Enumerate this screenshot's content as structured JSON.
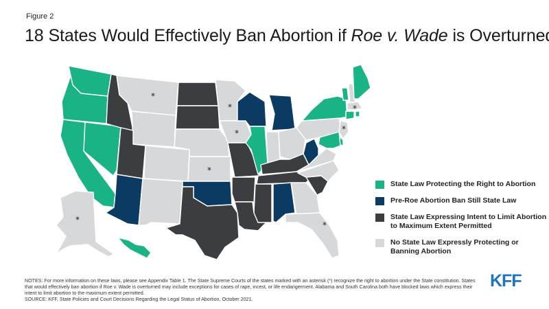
{
  "header": {
    "figure_label": "Figure 2",
    "title_before": "18 States Would Effectively Ban Abortion if ",
    "title_italic": "Roe v. Wade",
    "title_after": " is Overturned"
  },
  "colors": {
    "protecting": "#19b386",
    "pre_roe_ban": "#0b3a63",
    "intent_to_limit": "#3b3d40",
    "no_law": "#d7d8d9"
  },
  "legend": [
    {
      "label": "State Law Protecting the Right to Abortion",
      "category": "protecting"
    },
    {
      "label": "Pre-Roe Abortion Ban Still State Law",
      "category": "pre_roe_ban"
    },
    {
      "label": "State Law Expressing Intent to Limit Abortion to Maximum Extent Permitted",
      "category": "intent_to_limit"
    },
    {
      "label": "No State Law Expressly Protecting or Banning Abortion",
      "category": "no_law"
    }
  ],
  "map_data": {
    "states": [
      {
        "code": "WA",
        "category": "protecting"
      },
      {
        "code": "OR",
        "category": "protecting"
      },
      {
        "code": "CA",
        "category": "protecting"
      },
      {
        "code": "NV",
        "category": "protecting"
      },
      {
        "code": "ID",
        "category": "intent_to_limit"
      },
      {
        "code": "MT",
        "category": "no_law",
        "court_recognized": true
      },
      {
        "code": "WY",
        "category": "no_law"
      },
      {
        "code": "UT",
        "category": "intent_to_limit"
      },
      {
        "code": "AZ",
        "category": "pre_roe_ban"
      },
      {
        "code": "CO",
        "category": "no_law"
      },
      {
        "code": "NM",
        "category": "no_law"
      },
      {
        "code": "ND",
        "category": "intent_to_limit"
      },
      {
        "code": "SD",
        "category": "intent_to_limit"
      },
      {
        "code": "NE",
        "category": "no_law"
      },
      {
        "code": "KS",
        "category": "no_law",
        "court_recognized": true
      },
      {
        "code": "OK",
        "category": "pre_roe_ban"
      },
      {
        "code": "TX",
        "category": "intent_to_limit"
      },
      {
        "code": "MN",
        "category": "no_law",
        "court_recognized": true
      },
      {
        "code": "IA",
        "category": "no_law",
        "court_recognized": true
      },
      {
        "code": "MO",
        "category": "intent_to_limit"
      },
      {
        "code": "AR",
        "category": "intent_to_limit"
      },
      {
        "code": "LA",
        "category": "intent_to_limit"
      },
      {
        "code": "WI",
        "category": "pre_roe_ban"
      },
      {
        "code": "IL",
        "category": "protecting"
      },
      {
        "code": "MI",
        "category": "pre_roe_ban"
      },
      {
        "code": "IN",
        "category": "no_law"
      },
      {
        "code": "OH",
        "category": "no_law"
      },
      {
        "code": "KY",
        "category": "intent_to_limit"
      },
      {
        "code": "TN",
        "category": "intent_to_limit"
      },
      {
        "code": "MS",
        "category": "intent_to_limit"
      },
      {
        "code": "AL",
        "category": "pre_roe_ban"
      },
      {
        "code": "GA",
        "category": "no_law"
      },
      {
        "code": "FL",
        "category": "no_law",
        "court_recognized": true
      },
      {
        "code": "SC",
        "category": "intent_to_limit"
      },
      {
        "code": "NC",
        "category": "no_law"
      },
      {
        "code": "VA",
        "category": "no_law"
      },
      {
        "code": "WV",
        "category": "pre_roe_ban"
      },
      {
        "code": "PA",
        "category": "no_law"
      },
      {
        "code": "NY",
        "category": "protecting"
      },
      {
        "code": "VT",
        "category": "protecting"
      },
      {
        "code": "NH",
        "category": "no_law"
      },
      {
        "code": "ME",
        "category": "protecting"
      },
      {
        "code": "MA",
        "category": "no_law",
        "court_recognized": true
      },
      {
        "code": "CT",
        "category": "protecting"
      },
      {
        "code": "RI",
        "category": "protecting"
      },
      {
        "code": "NJ",
        "category": "no_law",
        "court_recognized": true
      },
      {
        "code": "DE",
        "category": "protecting"
      },
      {
        "code": "MD",
        "category": "protecting"
      },
      {
        "code": "AK",
        "category": "no_law",
        "court_recognized": true
      },
      {
        "code": "HI",
        "category": "protecting"
      }
    ]
  },
  "footer": {
    "notes": "NOTES: For more information on these laws, please see Appendix Table 1. The State Supreme Courts of the states marked with an asterisk (*) recognize the right to abortion under the State constitution. States that would effectively ban abortion if Roe v. Wade is overturned may include exceptions for cases of rape, incest, or life endangerment. Alabama and South Carolina both have blocked laws which express their intent to limit abortion to the maximum extent permitted.",
    "source": "SOURCE: KFF, State Policies and Court Decisions Regarding the Legal Status of Abortion, October 2021.",
    "logo_text": "KFF"
  }
}
